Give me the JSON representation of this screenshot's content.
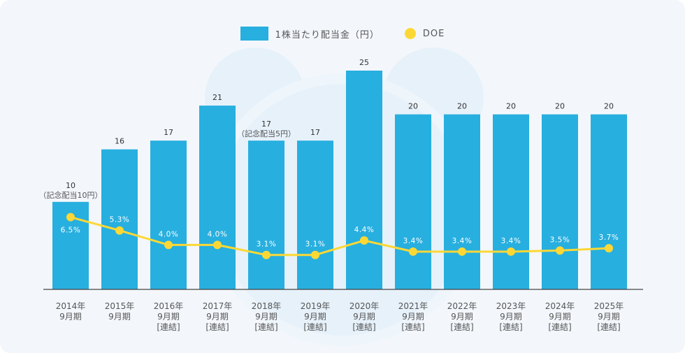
{
  "chart_data": {
    "type": "bar",
    "categories": [
      [
        "2014年",
        "9月期",
        ""
      ],
      [
        "2015年",
        "9月期",
        ""
      ],
      [
        "2016年",
        "9月期",
        "[連結]"
      ],
      [
        "2017年",
        "9月期",
        "[連結]"
      ],
      [
        "2018年",
        "9月期",
        "[連結]"
      ],
      [
        "2019年",
        "9月期",
        "[連結]"
      ],
      [
        "2020年",
        "9月期",
        "[連結]"
      ],
      [
        "2021年",
        "9月期",
        "[連結]"
      ],
      [
        "2022年",
        "9月期",
        "[連結]"
      ],
      [
        "2023年",
        "9月期",
        "[連結]"
      ],
      [
        "2024年",
        "9月期",
        "[連結]"
      ],
      [
        "2025年",
        "9月期",
        "[連結]"
      ]
    ],
    "series": [
      {
        "name": "1株当たり配当金（円）",
        "type": "bar",
        "values": [
          10,
          16,
          17,
          21,
          17,
          17,
          25,
          20,
          20,
          20,
          20,
          20
        ],
        "labels": [
          "10",
          "16",
          "17",
          "21",
          "17",
          "17",
          "25",
          "20",
          "20",
          "20",
          "20",
          "20"
        ],
        "notes": [
          "（記念配当10円）",
          "",
          "",
          "",
          "（記念配当5円）",
          "",
          "",
          "",
          "",
          "",
          "",
          ""
        ],
        "color": "#27afdf",
        "ylim": [
          0,
          25
        ]
      },
      {
        "name": "DOE",
        "type": "line",
        "values": [
          6.5,
          5.3,
          4.0,
          4.0,
          3.1,
          3.1,
          4.4,
          3.4,
          3.4,
          3.4,
          3.5,
          3.7
        ],
        "labels": [
          "6.5%",
          "5.3%",
          "4.0%",
          "4.0%",
          "3.1%",
          "3.1%",
          "4.4%",
          "3.4%",
          "3.4%",
          "3.4%",
          "3.5%",
          "3.7%"
        ],
        "color": "#fdd835",
        "ylim": [
          0,
          20
        ]
      }
    ],
    "legend": "top-center",
    "grid": false
  }
}
